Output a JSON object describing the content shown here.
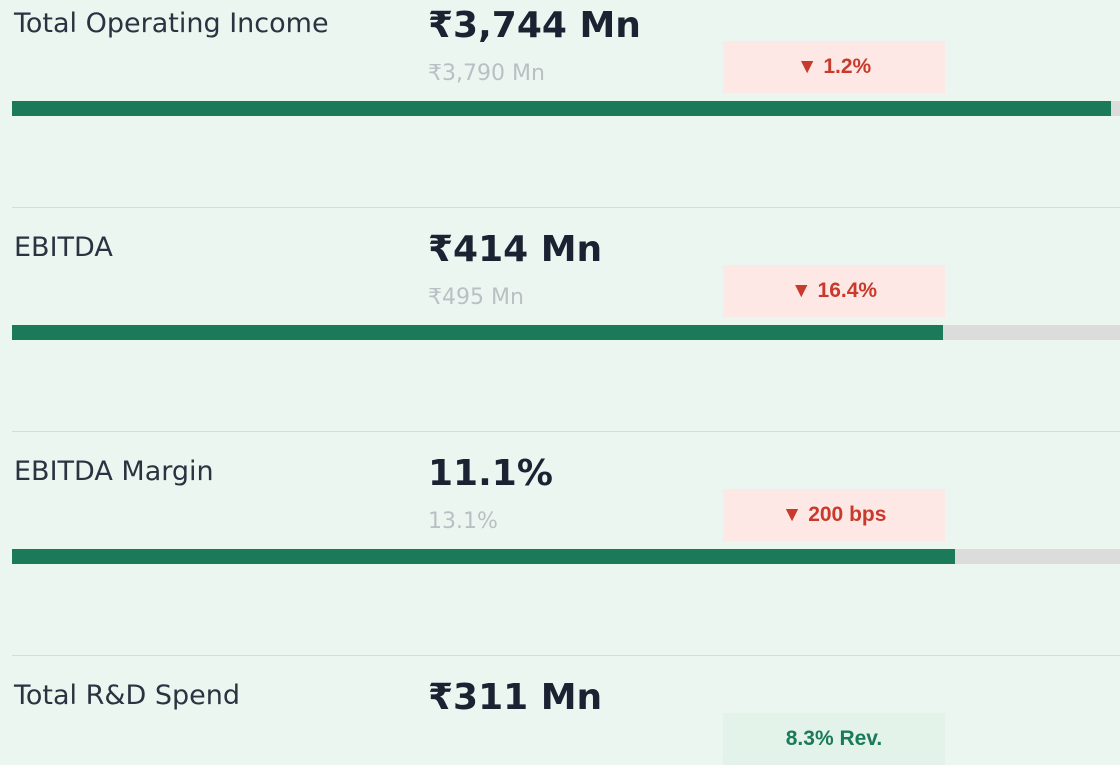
{
  "rows": [
    {
      "label": "Total Operating Income",
      "current": {
        "value": 3744,
        "label": "₹3,744 Mn"
      },
      "previous": {
        "value": 3790,
        "label": "₹3,790 Mn"
      },
      "badge": "▼ 1.2%",
      "trend": "down"
    },
    {
      "label": "EBITDA",
      "current": {
        "value": 414,
        "label": "₹414 Mn"
      },
      "previous": {
        "value": 495,
        "label": "₹495 Mn"
      },
      "badge": "▼ 16.4%",
      "trend": "down"
    },
    {
      "label": "EBITDA Margin",
      "current": {
        "value": 11.1,
        "label": "11.1%"
      },
      "previous": {
        "value": 13.1,
        "label": "13.1%"
      },
      "badge": "▼ 200 bps",
      "trend": "down"
    },
    {
      "label": "Total R&D Spend",
      "current": {
        "value": 311,
        "label": "₹311 Mn"
      },
      "badge": "8.3% Rev.",
      "trend": "up"
    }
  ]
}
